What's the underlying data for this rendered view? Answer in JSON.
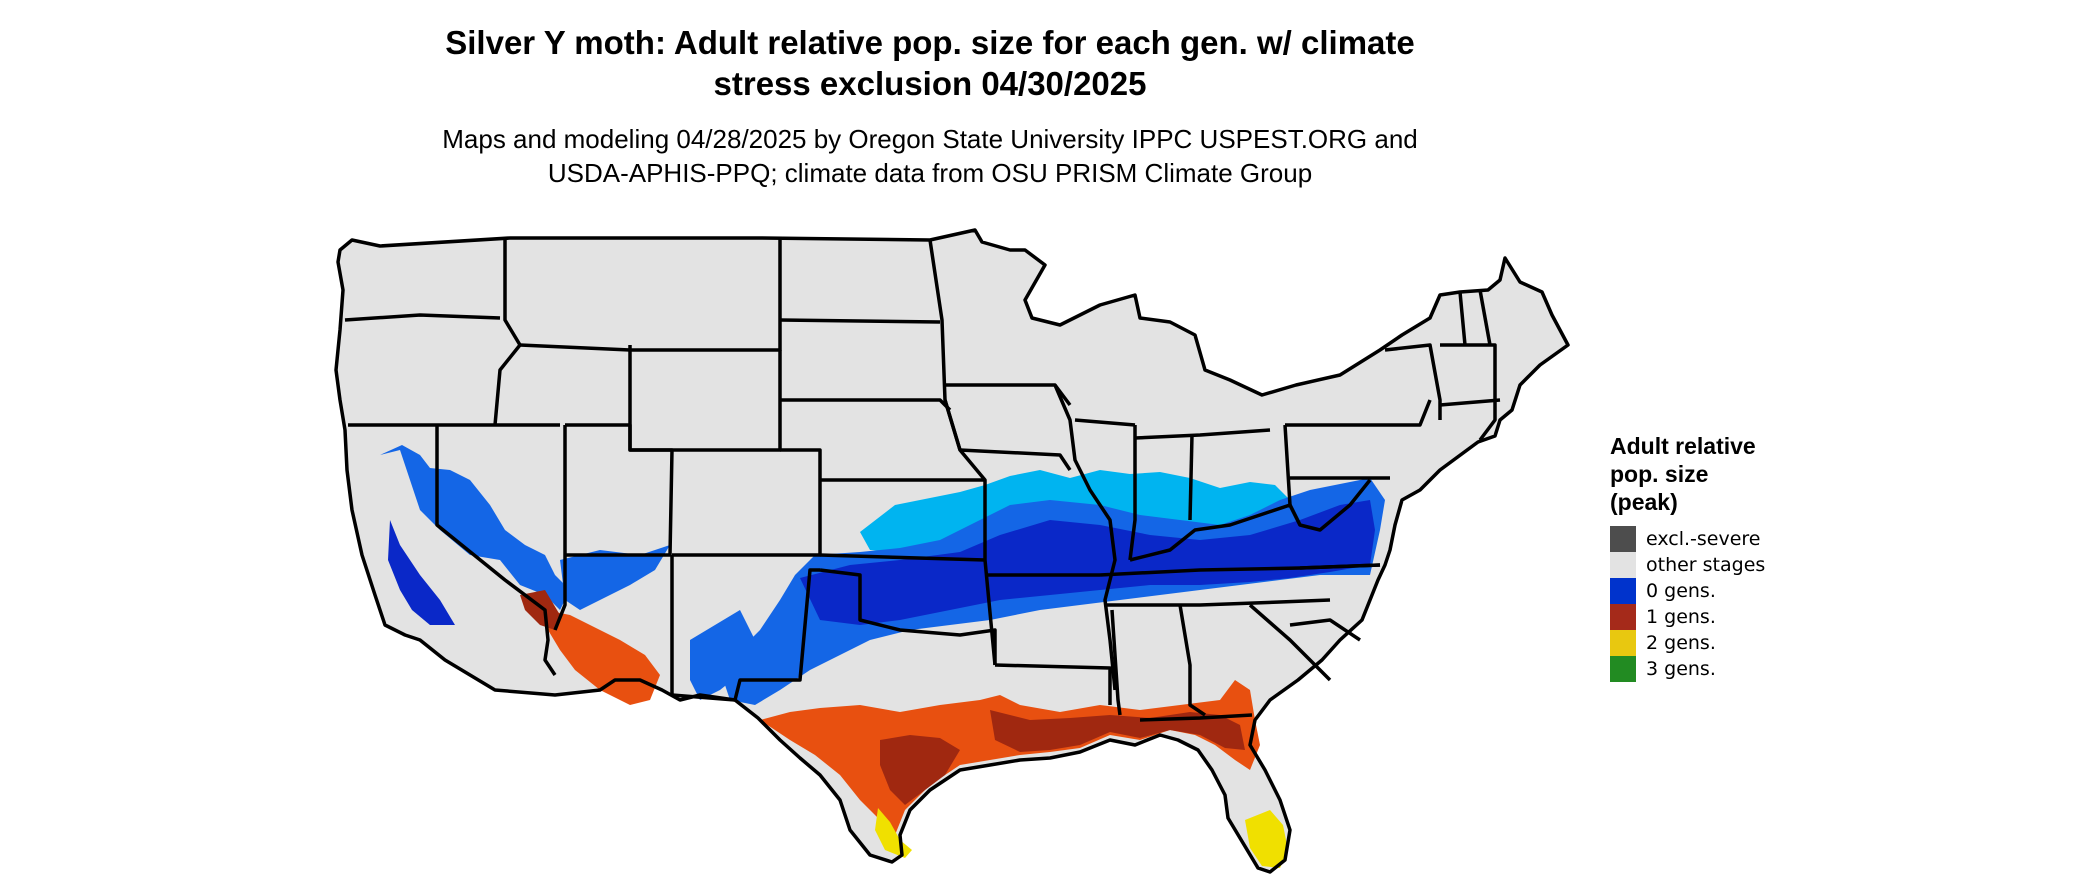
{
  "map": {
    "title_line1": "Silver Y moth: Adult relative pop. size for each gen. w/ climate",
    "title_line2": "stress exclusion 04/30/2025",
    "subtitle_line1": "Maps and modeling 04/28/2025 by Oregon State University IPPC USPEST.ORG and",
    "subtitle_line2": "USDA-APHIS-PPQ; climate data from OSU PRISM Climate Group",
    "region": "Contiguous United States",
    "land_color": "#e3e3e3",
    "border_color": "#000000"
  },
  "legend": {
    "title_line1": "Adult relative",
    "title_line2": "pop. size",
    "title_line3": "(peak)",
    "items": [
      {
        "label": "excl.-severe",
        "color": "#4d4d4d"
      },
      {
        "label": "other stages",
        "color": "#e3e3e3"
      },
      {
        "label": "0 gens.",
        "color": "#0033cc"
      },
      {
        "label": "1 gens.",
        "color": "#a52a1a"
      },
      {
        "label": "2 gens.",
        "color": "#e8c810"
      },
      {
        "label": "3 gens.",
        "color": "#228b22"
      }
    ]
  },
  "zones": {
    "blue_light": "#00b4f0",
    "blue_mid": "#1466e6",
    "blue_dark": "#0a28c8",
    "red_orange": "#e85010",
    "red_dark": "#a02810",
    "yellow": "#f0e000"
  }
}
